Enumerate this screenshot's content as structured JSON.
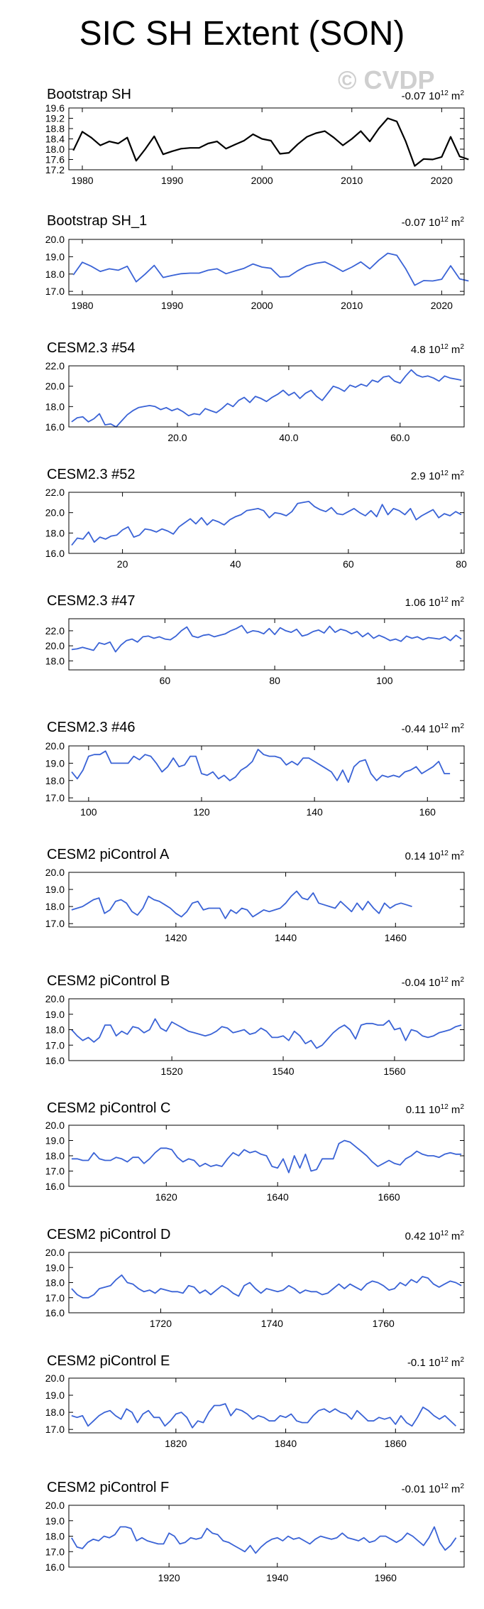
{
  "title": "SIC SH Extent (SON)",
  "watermark": "© CVDP",
  "trend_unit_exp": "12",
  "trend_unit_m": "m",
  "trend_unit_m_exp": "2",
  "colors": {
    "obs_line": "#000000",
    "model_line": "#3a63d6",
    "axis": "#000000"
  },
  "chart_data": [
    {
      "type": "line",
      "title": "Bootstrap SH",
      "trend": "-0.07 10",
      "color": "obs",
      "xlim": [
        1978.5,
        2022.5
      ],
      "ylim": [
        17.2,
        19.6
      ],
      "yticks": [
        17.2,
        17.6,
        18.0,
        18.4,
        18.8,
        19.2,
        19.6
      ],
      "ytick_labels": [
        "17.2",
        "17.6",
        "18.0",
        "18.4",
        "18.8",
        "19.2",
        "19.6"
      ],
      "xticks": [
        1980,
        1990,
        2000,
        2010,
        2020
      ],
      "xtick_labels": [
        "1980",
        "1990",
        "2000",
        "2010",
        "2020"
      ],
      "x_start": 1979,
      "values": [
        17.95,
        18.68,
        18.45,
        18.15,
        18.3,
        18.22,
        18.45,
        17.55,
        18.0,
        18.5,
        17.8,
        17.92,
        18.02,
        18.05,
        18.05,
        18.22,
        18.3,
        18.02,
        18.18,
        18.33,
        18.58,
        18.4,
        18.33,
        17.82,
        17.86,
        18.2,
        18.48,
        18.62,
        18.7,
        18.45,
        18.15,
        18.4,
        18.7,
        18.3,
        18.8,
        19.2,
        19.08,
        18.3,
        17.35,
        17.62,
        17.6,
        17.7,
        18.48,
        17.72,
        17.6
      ]
    },
    {
      "type": "line",
      "title": "Bootstrap SH_1",
      "trend": "-0.07 10",
      "color": "model",
      "xlim": [
        1978.5,
        2022.5
      ],
      "ylim": [
        16.8,
        20.0
      ],
      "yticks": [
        17.0,
        18.0,
        19.0,
        20.0
      ],
      "ytick_labels": [
        "17.0",
        "18.0",
        "19.0",
        "20.0"
      ],
      "xticks": [
        1980,
        1990,
        2000,
        2010,
        2020
      ],
      "xtick_labels": [
        "1980",
        "1990",
        "2000",
        "2010",
        "2020"
      ],
      "x_start": 1979,
      "values": [
        17.95,
        18.68,
        18.45,
        18.15,
        18.3,
        18.22,
        18.45,
        17.55,
        18.0,
        18.5,
        17.8,
        17.92,
        18.02,
        18.05,
        18.05,
        18.22,
        18.3,
        18.02,
        18.18,
        18.33,
        18.58,
        18.4,
        18.33,
        17.82,
        17.86,
        18.2,
        18.48,
        18.62,
        18.7,
        18.45,
        18.15,
        18.4,
        18.7,
        18.3,
        18.8,
        19.2,
        19.08,
        18.3,
        17.35,
        17.62,
        17.6,
        17.7,
        18.48,
        17.72,
        17.6
      ]
    },
    {
      "type": "line",
      "title": "CESM2.3 #54",
      "trend": "4.8 10",
      "color": "model",
      "xlim": [
        0.5,
        71.5
      ],
      "ylim": [
        16.0,
        22.0
      ],
      "yticks": [
        16.0,
        18.0,
        20.0,
        22.0
      ],
      "ytick_labels": [
        "16.0",
        "18.0",
        "20.0",
        "22.0"
      ],
      "xticks": [
        20,
        40,
        60
      ],
      "xtick_labels": [
        "20.0",
        "40.0",
        "60.0"
      ],
      "x_start": 1,
      "values": [
        16.5,
        16.9,
        17.0,
        16.5,
        16.8,
        17.3,
        16.2,
        16.3,
        16.0,
        16.6,
        17.2,
        17.6,
        17.9,
        18.0,
        18.1,
        18.0,
        17.7,
        17.9,
        17.6,
        17.8,
        17.5,
        17.1,
        17.3,
        17.2,
        17.8,
        17.6,
        17.4,
        17.8,
        18.3,
        18.0,
        18.6,
        18.9,
        18.4,
        19.0,
        18.8,
        18.5,
        18.9,
        19.2,
        19.6,
        19.1,
        19.4,
        18.8,
        19.3,
        19.6,
        19.0,
        18.6,
        19.3,
        20.0,
        19.8,
        19.5,
        20.1,
        19.9,
        20.2,
        20.0,
        20.6,
        20.4,
        20.9,
        21.0,
        20.5,
        20.3,
        21.0,
        21.6,
        21.1,
        20.9,
        21.0,
        20.8,
        20.5,
        21.0,
        20.8,
        20.7,
        20.6
      ]
    },
    {
      "type": "line",
      "title": "CESM2.3 #52",
      "trend": "2.9 10",
      "color": "model",
      "xlim": [
        10.5,
        80.5
      ],
      "ylim": [
        16.0,
        22.0
      ],
      "yticks": [
        16.0,
        18.0,
        20.0,
        22.0
      ],
      "ytick_labels": [
        "16.0",
        "18.0",
        "20.0",
        "22.0"
      ],
      "xticks": [
        20,
        40,
        60,
        80
      ],
      "xtick_labels": [
        "20",
        "40",
        "60",
        "80"
      ],
      "x_start": 11,
      "values": [
        16.8,
        17.5,
        17.4,
        18.1,
        17.1,
        17.6,
        17.4,
        17.7,
        17.8,
        18.3,
        18.6,
        17.6,
        17.8,
        18.4,
        18.3,
        18.1,
        18.4,
        18.2,
        17.9,
        18.6,
        19.0,
        19.4,
        18.9,
        19.5,
        18.8,
        19.3,
        19.1,
        18.8,
        19.3,
        19.6,
        19.8,
        20.2,
        20.3,
        20.4,
        20.2,
        19.5,
        20.0,
        19.9,
        19.7,
        20.1,
        20.9,
        21.0,
        21.1,
        20.6,
        20.3,
        20.1,
        20.5,
        19.9,
        19.8,
        20.1,
        20.4,
        20.0,
        19.7,
        20.2,
        19.6,
        20.8,
        19.8,
        20.4,
        20.2,
        19.8,
        20.4,
        19.3,
        19.7,
        20.0,
        20.3,
        19.5,
        19.9,
        19.7,
        20.1,
        19.8
      ]
    },
    {
      "type": "line",
      "title": "CESM2.3 #47",
      "trend": "1.06 10",
      "color": "model",
      "xlim": [
        42.5,
        114.5
      ],
      "ylim": [
        16.8,
        23.6
      ],
      "yticks": [
        18.0,
        20.0,
        22.0
      ],
      "ytick_labels": [
        "18.0",
        "20.0",
        "22.0"
      ],
      "xticks": [
        60,
        80,
        100
      ],
      "xtick_labels": [
        "60",
        "80",
        "100"
      ],
      "x_start": 43,
      "values": [
        19.5,
        19.6,
        19.8,
        19.6,
        19.4,
        20.4,
        20.2,
        20.5,
        19.2,
        20.1,
        20.7,
        20.9,
        20.5,
        21.2,
        21.3,
        21.0,
        21.2,
        20.9,
        20.8,
        21.3,
        22.0,
        22.5,
        21.3,
        21.1,
        21.4,
        21.5,
        21.2,
        21.4,
        21.6,
        22.0,
        22.3,
        22.7,
        21.7,
        22.0,
        21.9,
        21.6,
        22.3,
        21.5,
        22.4,
        22.0,
        21.8,
        22.2,
        21.3,
        21.5,
        21.9,
        22.1,
        21.7,
        22.6,
        21.8,
        22.2,
        22.0,
        21.6,
        21.9,
        21.2,
        21.7,
        21.0,
        21.4,
        21.1,
        20.7,
        20.9,
        20.6,
        21.3,
        21.0,
        21.2,
        20.8,
        21.1,
        21.0,
        20.9,
        21.2,
        20.7,
        21.4,
        20.9
      ]
    },
    {
      "type": "line",
      "title": "CESM2.3 #46",
      "trend": "-0.44 10",
      "color": "model",
      "xlim": [
        96.5,
        166.5
      ],
      "ylim": [
        16.8,
        20.0
      ],
      "yticks": [
        17.0,
        18.0,
        19.0,
        20.0
      ],
      "ytick_labels": [
        "17.0",
        "18.0",
        "19.0",
        "20.0"
      ],
      "xticks": [
        100,
        120,
        140,
        160
      ],
      "xtick_labels": [
        "100",
        "120",
        "140",
        "160"
      ],
      "x_start": 97,
      "values": [
        18.5,
        18.1,
        18.6,
        19.4,
        19.5,
        19.5,
        19.7,
        19.0,
        19.0,
        19.0,
        19.0,
        19.4,
        19.2,
        19.5,
        19.4,
        19.0,
        18.5,
        18.8,
        19.3,
        18.8,
        18.9,
        19.4,
        19.4,
        18.4,
        18.3,
        18.5,
        18.1,
        18.3,
        18.0,
        18.2,
        18.6,
        18.8,
        19.1,
        19.8,
        19.5,
        19.4,
        19.4,
        19.3,
        18.9,
        19.1,
        18.9,
        19.3,
        19.3,
        19.1,
        18.9,
        18.7,
        18.5,
        18.0,
        18.6,
        17.9,
        18.8,
        19.1,
        19.2,
        18.4,
        18.0,
        18.3,
        18.2,
        18.3,
        18.2,
        18.5,
        18.6,
        18.8,
        18.4,
        18.6,
        18.8,
        19.1,
        18.4,
        18.4
      ]
    },
    {
      "type": "line",
      "title": "CESM2 piControl A",
      "trend": "0.14 10",
      "color": "model",
      "xlim": [
        1400.5,
        1472.5
      ],
      "ylim": [
        16.8,
        20.0
      ],
      "yticks": [
        17.0,
        18.0,
        19.0,
        20.0
      ],
      "ytick_labels": [
        "17.0",
        "18.0",
        "19.0",
        "20.0"
      ],
      "xticks": [
        1420,
        1440,
        1460
      ],
      "xtick_labels": [
        "1420",
        "1440",
        "1460"
      ],
      "x_start": 1401,
      "values": [
        17.8,
        17.9,
        18.0,
        18.2,
        18.4,
        18.5,
        17.6,
        17.8,
        18.3,
        18.4,
        18.2,
        17.7,
        17.5,
        17.9,
        18.6,
        18.4,
        18.3,
        18.1,
        17.9,
        17.6,
        17.4,
        17.7,
        18.2,
        18.3,
        17.8,
        17.9,
        17.9,
        17.9,
        17.3,
        17.8,
        17.6,
        17.9,
        17.8,
        17.4,
        17.6,
        17.8,
        17.7,
        17.8,
        17.9,
        18.2,
        18.6,
        18.9,
        18.5,
        18.4,
        18.8,
        18.2,
        18.1,
        18.0,
        17.9,
        18.3,
        18.0,
        17.7,
        18.2,
        17.8,
        18.3,
        17.9,
        17.6,
        18.2,
        17.9,
        18.1,
        18.2,
        18.1,
        18.0
      ]
    },
    {
      "type": "line",
      "title": "CESM2 piControl B",
      "trend": "-0.04 10",
      "color": "model",
      "xlim": [
        1501.5,
        1572.5
      ],
      "ylim": [
        16.0,
        20.0
      ],
      "yticks": [
        16.0,
        17.0,
        18.0,
        19.0,
        20.0
      ],
      "ytick_labels": [
        "16.0",
        "17.0",
        "18.0",
        "19.0",
        "20.0"
      ],
      "xticks": [
        1520,
        1540,
        1560
      ],
      "xtick_labels": [
        "1520",
        "1540",
        "1560"
      ],
      "x_start": 1502,
      "values": [
        18.0,
        17.6,
        17.3,
        17.5,
        17.2,
        17.5,
        18.3,
        18.3,
        17.6,
        17.9,
        17.7,
        18.2,
        18.1,
        17.8,
        18.0,
        18.7,
        18.1,
        17.9,
        18.5,
        18.3,
        18.1,
        17.9,
        17.8,
        17.7,
        17.6,
        17.7,
        17.9,
        18.2,
        18.1,
        17.8,
        17.9,
        18.0,
        17.7,
        17.8,
        18.1,
        17.9,
        17.5,
        17.5,
        17.6,
        17.3,
        17.9,
        17.6,
        17.1,
        17.3,
        16.8,
        17.0,
        17.4,
        17.8,
        18.1,
        18.3,
        18.0,
        17.4,
        18.3,
        18.4,
        18.4,
        18.3,
        18.3,
        18.6,
        18.0,
        18.1,
        17.3,
        18.0,
        17.9,
        17.6,
        17.5,
        17.6,
        17.8,
        17.9,
        18.0,
        18.2,
        18.3
      ]
    },
    {
      "type": "line",
      "title": "CESM2 piControl C",
      "trend": "0.11 10",
      "color": "model",
      "xlim": [
        1602.5,
        1673.5
      ],
      "ylim": [
        16.0,
        20.0
      ],
      "yticks": [
        16.0,
        17.0,
        18.0,
        19.0,
        20.0
      ],
      "ytick_labels": [
        "16.0",
        "17.0",
        "18.0",
        "19.0",
        "20.0"
      ],
      "xticks": [
        1620,
        1640,
        1660
      ],
      "xtick_labels": [
        "1620",
        "1640",
        "1660"
      ],
      "x_start": 1603,
      "values": [
        17.8,
        17.8,
        17.7,
        17.7,
        18.2,
        17.8,
        17.7,
        17.7,
        17.9,
        17.8,
        17.6,
        17.9,
        17.9,
        17.5,
        17.8,
        18.2,
        18.5,
        18.5,
        18.4,
        17.9,
        17.6,
        17.8,
        17.7,
        17.3,
        17.5,
        17.3,
        17.4,
        17.3,
        17.8,
        18.2,
        18.0,
        18.4,
        18.2,
        18.3,
        18.1,
        18.0,
        17.3,
        17.2,
        17.8,
        16.9,
        18.0,
        17.2,
        18.1,
        17.0,
        17.1,
        17.8,
        17.8,
        17.8,
        18.8,
        19.0,
        18.9,
        18.6,
        18.3,
        18.0,
        17.6,
        17.3,
        17.5,
        17.7,
        17.5,
        17.4,
        17.8,
        18.0,
        18.3,
        18.1,
        18.0,
        18.0,
        17.9,
        18.1,
        18.2,
        18.1,
        18.1
      ]
    },
    {
      "type": "line",
      "title": "CESM2 piControl D",
      "trend": "0.42 10",
      "color": "model",
      "xlim": [
        1703.5,
        1774.5
      ],
      "ylim": [
        16.0,
        20.0
      ],
      "yticks": [
        16.0,
        17.0,
        18.0,
        19.0,
        20.0
      ],
      "ytick_labels": [
        "16.0",
        "17.0",
        "18.0",
        "19.0",
        "20.0"
      ],
      "xticks": [
        1720,
        1740,
        1760
      ],
      "xtick_labels": [
        "1720",
        "1740",
        "1760"
      ],
      "x_start": 1704,
      "values": [
        17.6,
        17.2,
        17.0,
        17.0,
        17.2,
        17.6,
        17.7,
        17.8,
        18.2,
        18.5,
        18.0,
        17.9,
        17.6,
        17.4,
        17.5,
        17.3,
        17.6,
        17.5,
        17.4,
        17.4,
        17.3,
        17.8,
        17.7,
        17.3,
        17.5,
        17.2,
        17.5,
        17.8,
        17.6,
        17.3,
        17.1,
        17.8,
        18.0,
        17.6,
        17.3,
        17.6,
        17.5,
        17.4,
        17.5,
        17.8,
        17.6,
        17.3,
        17.5,
        17.4,
        17.4,
        17.2,
        17.3,
        17.6,
        17.9,
        17.6,
        17.9,
        17.7,
        17.5,
        17.9,
        18.1,
        18.0,
        17.8,
        17.5,
        17.6,
        18.0,
        17.8,
        18.2,
        18.0,
        18.4,
        18.3,
        17.9,
        17.7,
        17.9,
        18.1,
        18.0,
        17.8
      ]
    },
    {
      "type": "line",
      "title": "CESM2 piControl E",
      "trend": "-0.1 10",
      "color": "model",
      "xlim": [
        1800.5,
        1872.5
      ],
      "ylim": [
        16.8,
        20.0
      ],
      "yticks": [
        17.0,
        18.0,
        19.0,
        20.0
      ],
      "ytick_labels": [
        "17.0",
        "18.0",
        "19.0",
        "20.0"
      ],
      "xticks": [
        1820,
        1840,
        1860
      ],
      "xtick_labels": [
        "1820",
        "1840",
        "1860"
      ],
      "x_start": 1801,
      "values": [
        17.8,
        17.7,
        17.8,
        17.2,
        17.5,
        17.8,
        18.0,
        18.1,
        17.8,
        17.6,
        18.2,
        18.0,
        17.4,
        17.9,
        18.1,
        17.7,
        17.7,
        17.2,
        17.5,
        17.9,
        18.0,
        17.7,
        17.1,
        17.5,
        17.4,
        18.0,
        18.4,
        18.4,
        18.5,
        17.8,
        18.2,
        18.1,
        17.9,
        17.6,
        17.8,
        17.7,
        17.5,
        17.5,
        17.8,
        17.7,
        17.9,
        17.5,
        17.4,
        17.4,
        17.8,
        18.1,
        18.2,
        18.0,
        18.2,
        18.0,
        17.9,
        17.6,
        18.1,
        17.8,
        17.5,
        17.5,
        17.7,
        17.6,
        17.7,
        17.3,
        17.8,
        17.4,
        17.2,
        17.7,
        18.3,
        18.1,
        17.8,
        17.6,
        17.8,
        17.5,
        17.2
      ]
    },
    {
      "type": "line",
      "title": "CESM2 piControl F",
      "trend": "-0.01 10",
      "color": "model",
      "xlim": [
        1901.5,
        1974.5
      ],
      "ylim": [
        16.0,
        20.0
      ],
      "yticks": [
        16.0,
        17.0,
        18.0,
        19.0,
        20.0
      ],
      "ytick_labels": [
        "16.0",
        "17.0",
        "18.0",
        "19.0",
        "20.0"
      ],
      "xticks": [
        1920,
        1940,
        1960
      ],
      "xtick_labels": [
        "1920",
        "1940",
        "1960"
      ],
      "x_start": 1902,
      "values": [
        17.9,
        17.3,
        17.2,
        17.6,
        17.8,
        17.7,
        18.0,
        17.9,
        18.1,
        18.6,
        18.6,
        18.5,
        17.7,
        17.9,
        17.7,
        17.6,
        17.5,
        17.5,
        18.2,
        18.0,
        17.5,
        17.6,
        17.9,
        17.8,
        17.9,
        18.5,
        18.2,
        18.1,
        17.7,
        17.6,
        17.4,
        17.2,
        17.0,
        17.4,
        16.9,
        17.3,
        17.6,
        17.8,
        17.9,
        17.7,
        18.0,
        17.8,
        17.9,
        17.7,
        17.5,
        17.8,
        18.0,
        17.9,
        17.8,
        17.9,
        18.2,
        17.9,
        17.8,
        17.7,
        17.9,
        17.6,
        17.7,
        18.0,
        18.0,
        17.8,
        17.6,
        17.8,
        18.2,
        18.0,
        17.7,
        17.4,
        17.9,
        18.6,
        17.6,
        17.1,
        17.4,
        17.9
      ]
    }
  ]
}
